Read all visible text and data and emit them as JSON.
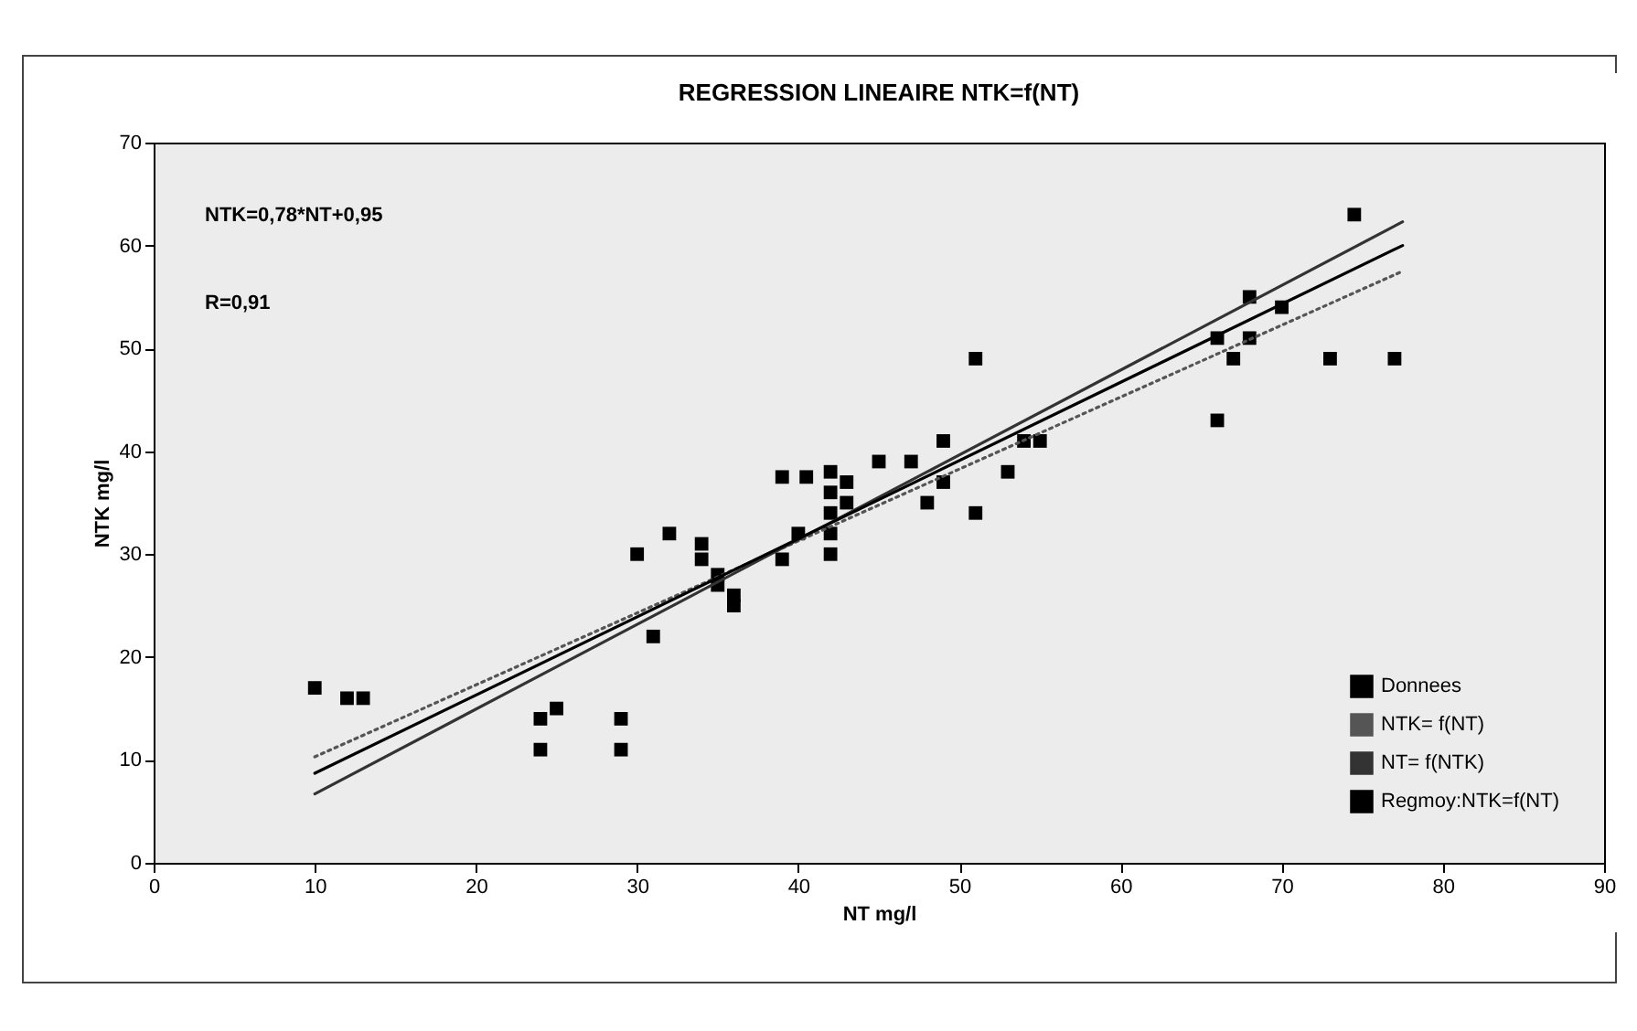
{
  "chart_data": {
    "type": "scatter",
    "title": "REGRESSION LINEAIRE NTK=f(NT)",
    "xlabel": "NT mg/l",
    "ylabel": "NTK mg/l",
    "annotations": [
      "NTK=0,78*NT+0,95",
      "R=0,91"
    ],
    "xlim": [
      0,
      90
    ],
    "xticks": [
      0,
      10,
      20,
      30,
      40,
      50,
      60,
      70,
      80,
      90
    ],
    "ylim": [
      0,
      70
    ],
    "yticks": [
      0,
      10,
      20,
      30,
      40,
      50,
      60,
      70
    ],
    "grid": false,
    "legend": "bottom right",
    "series": [
      {
        "name": "Donnees",
        "marker": "square",
        "color": "#000000",
        "x": [
          10,
          12,
          13,
          24,
          25,
          24,
          29,
          29,
          31,
          30,
          32,
          34,
          34,
          35,
          36,
          36,
          35,
          39,
          39,
          40.5,
          40,
          42,
          42,
          42,
          42,
          42,
          43,
          43,
          45,
          47,
          48,
          49,
          49,
          51,
          51,
          53,
          54,
          55,
          66,
          66,
          67,
          68,
          68,
          70,
          73,
          74.5,
          77
        ],
        "values": [
          17,
          16,
          16,
          14,
          15,
          11,
          14,
          11,
          22,
          30,
          32,
          31,
          29.5,
          27,
          26,
          25,
          28,
          37.5,
          29.5,
          37.5,
          32,
          38,
          36,
          34,
          32,
          30,
          37,
          35,
          39,
          39,
          35,
          41,
          37,
          34,
          49,
          38,
          41,
          41,
          43,
          51,
          49,
          51,
          55,
          54,
          49,
          63,
          49
        ]
      },
      {
        "name": "NTK= f(NT)",
        "type": "line",
        "line_style": "dotted",
        "color": "#555555",
        "x": [
          10,
          77.5
        ],
        "values": [
          10.3,
          57.5
        ]
      },
      {
        "name": "NT= f(NTK)",
        "type": "line",
        "line_style": "solid",
        "color": "#333333",
        "x": [
          10,
          77.5
        ],
        "values": [
          6.7,
          62.3
        ]
      },
      {
        "name": "Regmoy:NTK=f(NT)",
        "type": "line",
        "line_style": "solid",
        "color": "#000000",
        "x": [
          10,
          77.5
        ],
        "values": [
          8.7,
          60
        ]
      }
    ]
  }
}
